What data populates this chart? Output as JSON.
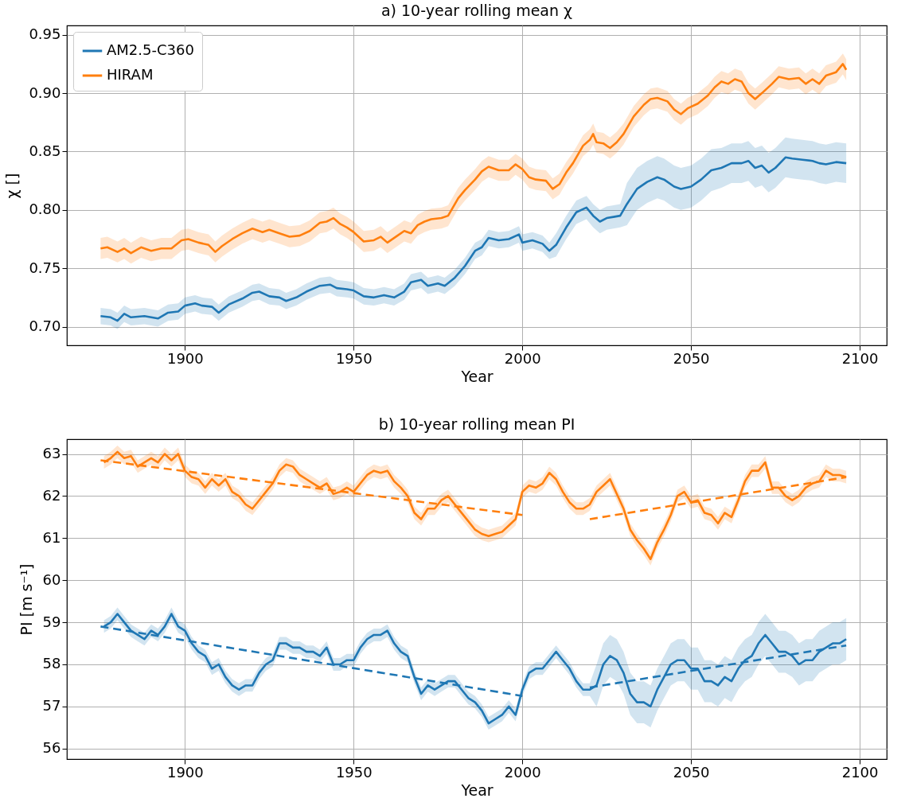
{
  "chart_data": [
    {
      "type": "line",
      "title": "a) 10-year rolling mean χ",
      "xlabel": "Year",
      "ylabel": "χ []",
      "xlim": [
        1865,
        2108
      ],
      "xticks": [
        1900,
        1950,
        2000,
        2050,
        2100
      ],
      "ylim": [
        0.684,
        0.958
      ],
      "yticks": [
        {
          "value": 0.7,
          "label": "0.70"
        },
        0.75,
        {
          "value": 0.8,
          "label": "0.80"
        },
        0.85,
        {
          "value": 0.9,
          "label": "0.90"
        },
        0.95
      ],
      "grid": true,
      "legend": "top left",
      "series": [
        {
          "name": "AM2.5-C360",
          "color": "#1f77b4",
          "x": [
            1875,
            1878,
            1880,
            1882,
            1884,
            1888,
            1892,
            1895,
            1898,
            1900,
            1903,
            1905,
            1908,
            1910,
            1913,
            1917,
            1920,
            1922,
            1925,
            1928,
            1930,
            1933,
            1936,
            1940,
            1943,
            1945,
            1948,
            1950,
            1953,
            1956,
            1959,
            1962,
            1965,
            1967,
            1970,
            1972,
            1975,
            1977,
            1980,
            1983,
            1986,
            1988,
            1990,
            1993,
            1996,
            1999,
            2000,
            2003,
            2006,
            2008,
            2010,
            2013,
            2016,
            2019,
            2021,
            2023,
            2025,
            2027,
            2029,
            2031,
            2034,
            2037,
            2040,
            2042,
            2045,
            2047,
            2050,
            2053,
            2056,
            2059,
            2062,
            2065,
            2067,
            2069,
            2071,
            2073,
            2075,
            2078,
            2080,
            2083,
            2086,
            2088,
            2090,
            2093,
            2096
          ],
          "values": [
            0.709,
            0.708,
            0.705,
            0.711,
            0.708,
            0.709,
            0.707,
            0.712,
            0.713,
            0.718,
            0.72,
            0.718,
            0.717,
            0.712,
            0.719,
            0.724,
            0.729,
            0.73,
            0.726,
            0.725,
            0.722,
            0.725,
            0.73,
            0.735,
            0.736,
            0.733,
            0.732,
            0.731,
            0.726,
            0.725,
            0.727,
            0.725,
            0.73,
            0.738,
            0.74,
            0.735,
            0.737,
            0.735,
            0.742,
            0.752,
            0.765,
            0.768,
            0.776,
            0.774,
            0.775,
            0.779,
            0.772,
            0.774,
            0.771,
            0.765,
            0.77,
            0.785,
            0.798,
            0.802,
            0.795,
            0.79,
            0.793,
            0.794,
            0.795,
            0.805,
            0.818,
            0.824,
            0.828,
            0.826,
            0.82,
            0.818,
            0.82,
            0.826,
            0.834,
            0.836,
            0.84,
            0.84,
            0.842,
            0.836,
            0.838,
            0.832,
            0.836,
            0.845,
            0.844,
            0.843,
            0.842,
            0.84,
            0.839,
            0.841,
            0.84
          ],
          "lower": [
            0.702,
            0.701,
            0.698,
            0.704,
            0.701,
            0.702,
            0.7,
            0.705,
            0.706,
            0.711,
            0.713,
            0.711,
            0.71,
            0.705,
            0.712,
            0.717,
            0.722,
            0.723,
            0.719,
            0.718,
            0.715,
            0.718,
            0.723,
            0.728,
            0.729,
            0.726,
            0.725,
            0.724,
            0.719,
            0.718,
            0.72,
            0.718,
            0.723,
            0.731,
            0.733,
            0.728,
            0.73,
            0.728,
            0.735,
            0.745,
            0.758,
            0.761,
            0.769,
            0.767,
            0.768,
            0.772,
            0.765,
            0.767,
            0.764,
            0.758,
            0.76,
            0.775,
            0.788,
            0.792,
            0.785,
            0.78,
            0.783,
            0.784,
            0.785,
            0.787,
            0.8,
            0.806,
            0.81,
            0.808,
            0.802,
            0.8,
            0.802,
            0.808,
            0.816,
            0.819,
            0.823,
            0.823,
            0.825,
            0.819,
            0.821,
            0.815,
            0.819,
            0.828,
            0.827,
            0.826,
            0.825,
            0.823,
            0.822,
            0.824,
            0.823
          ],
          "upper": [
            0.716,
            0.715,
            0.712,
            0.718,
            0.715,
            0.716,
            0.714,
            0.719,
            0.72,
            0.725,
            0.727,
            0.725,
            0.724,
            0.719,
            0.726,
            0.731,
            0.736,
            0.737,
            0.733,
            0.732,
            0.729,
            0.732,
            0.737,
            0.742,
            0.743,
            0.74,
            0.739,
            0.738,
            0.733,
            0.732,
            0.734,
            0.732,
            0.737,
            0.745,
            0.747,
            0.742,
            0.744,
            0.742,
            0.749,
            0.759,
            0.772,
            0.775,
            0.783,
            0.781,
            0.782,
            0.786,
            0.779,
            0.781,
            0.778,
            0.772,
            0.78,
            0.795,
            0.808,
            0.812,
            0.805,
            0.8,
            0.803,
            0.804,
            0.805,
            0.823,
            0.836,
            0.842,
            0.846,
            0.844,
            0.838,
            0.836,
            0.838,
            0.844,
            0.852,
            0.853,
            0.857,
            0.857,
            0.859,
            0.853,
            0.855,
            0.849,
            0.853,
            0.862,
            0.861,
            0.86,
            0.859,
            0.857,
            0.856,
            0.858,
            0.857
          ]
        },
        {
          "name": "HIRAM",
          "color": "#ff7f0e",
          "x": [
            1875,
            1877,
            1880,
            1882,
            1884,
            1887,
            1890,
            1893,
            1896,
            1899,
            1901,
            1904,
            1907,
            1909,
            1911,
            1914,
            1917,
            1920,
            1923,
            1925,
            1928,
            1931,
            1934,
            1937,
            1940,
            1942,
            1944,
            1946,
            1948,
            1950,
            1953,
            1956,
            1958,
            1960,
            1963,
            1965,
            1967,
            1969,
            1971,
            1973,
            1976,
            1978,
            1981,
            1983,
            1986,
            1988,
            1990,
            1993,
            1996,
            1998,
            2000,
            2002,
            2004,
            2007,
            2009,
            2011,
            2013,
            2015,
            2018,
            2020,
            2021,
            2022,
            2024,
            2026,
            2028,
            2030,
            2033,
            2036,
            2038,
            2040,
            2043,
            2045,
            2047,
            2049,
            2052,
            2055,
            2057,
            2059,
            2061,
            2063,
            2065,
            2067,
            2069,
            2071,
            2074,
            2076,
            2079,
            2082,
            2084,
            2086,
            2088,
            2090,
            2093,
            2095,
            2096
          ],
          "values": [
            0.767,
            0.768,
            0.764,
            0.767,
            0.763,
            0.768,
            0.765,
            0.767,
            0.767,
            0.774,
            0.775,
            0.772,
            0.77,
            0.764,
            0.769,
            0.775,
            0.78,
            0.784,
            0.781,
            0.783,
            0.78,
            0.777,
            0.778,
            0.782,
            0.789,
            0.79,
            0.793,
            0.788,
            0.785,
            0.781,
            0.773,
            0.774,
            0.777,
            0.772,
            0.778,
            0.782,
            0.78,
            0.787,
            0.79,
            0.792,
            0.793,
            0.795,
            0.81,
            0.817,
            0.826,
            0.833,
            0.837,
            0.834,
            0.834,
            0.839,
            0.835,
            0.828,
            0.826,
            0.825,
            0.818,
            0.822,
            0.832,
            0.84,
            0.855,
            0.86,
            0.865,
            0.858,
            0.857,
            0.853,
            0.858,
            0.865,
            0.88,
            0.89,
            0.895,
            0.896,
            0.893,
            0.886,
            0.882,
            0.887,
            0.891,
            0.898,
            0.905,
            0.91,
            0.908,
            0.912,
            0.91,
            0.9,
            0.895,
            0.9,
            0.908,
            0.914,
            0.912,
            0.913,
            0.908,
            0.912,
            0.908,
            0.915,
            0.918,
            0.925,
            0.92
          ],
          "lower": [
            0.758,
            0.759,
            0.755,
            0.758,
            0.754,
            0.759,
            0.756,
            0.758,
            0.758,
            0.765,
            0.766,
            0.763,
            0.761,
            0.755,
            0.76,
            0.766,
            0.771,
            0.775,
            0.772,
            0.774,
            0.771,
            0.768,
            0.769,
            0.773,
            0.78,
            0.781,
            0.784,
            0.779,
            0.776,
            0.772,
            0.764,
            0.765,
            0.768,
            0.763,
            0.769,
            0.773,
            0.771,
            0.778,
            0.781,
            0.783,
            0.784,
            0.786,
            0.801,
            0.808,
            0.817,
            0.824,
            0.828,
            0.825,
            0.825,
            0.83,
            0.826,
            0.819,
            0.817,
            0.816,
            0.809,
            0.813,
            0.823,
            0.831,
            0.846,
            0.851,
            0.856,
            0.849,
            0.848,
            0.844,
            0.849,
            0.856,
            0.871,
            0.881,
            0.886,
            0.887,
            0.884,
            0.877,
            0.873,
            0.878,
            0.882,
            0.889,
            0.896,
            0.901,
            0.899,
            0.903,
            0.901,
            0.891,
            0.886,
            0.891,
            0.899,
            0.905,
            0.903,
            0.904,
            0.899,
            0.903,
            0.899,
            0.906,
            0.909,
            0.916,
            0.911
          ],
          "upper": [
            0.776,
            0.777,
            0.773,
            0.776,
            0.772,
            0.777,
            0.774,
            0.776,
            0.776,
            0.783,
            0.784,
            0.781,
            0.779,
            0.773,
            0.778,
            0.784,
            0.789,
            0.793,
            0.79,
            0.792,
            0.789,
            0.786,
            0.787,
            0.791,
            0.798,
            0.799,
            0.802,
            0.797,
            0.794,
            0.79,
            0.782,
            0.783,
            0.786,
            0.781,
            0.787,
            0.791,
            0.789,
            0.796,
            0.799,
            0.801,
            0.802,
            0.804,
            0.819,
            0.826,
            0.835,
            0.842,
            0.846,
            0.843,
            0.843,
            0.848,
            0.844,
            0.837,
            0.835,
            0.834,
            0.827,
            0.831,
            0.841,
            0.849,
            0.864,
            0.869,
            0.874,
            0.867,
            0.866,
            0.862,
            0.867,
            0.874,
            0.889,
            0.899,
            0.904,
            0.905,
            0.902,
            0.895,
            0.891,
            0.896,
            0.9,
            0.907,
            0.914,
            0.919,
            0.917,
            0.921,
            0.919,
            0.909,
            0.904,
            0.909,
            0.917,
            0.923,
            0.921,
            0.922,
            0.917,
            0.921,
            0.917,
            0.924,
            0.927,
            0.934,
            0.929
          ]
        }
      ]
    },
    {
      "type": "line",
      "title": "b) 10-year rolling mean PI",
      "xlabel": "Year",
      "ylabel": "PI [m s⁻¹]",
      "xlim": [
        1865,
        2108
      ],
      "xticks": [
        1900,
        1950,
        2000,
        2050,
        2100
      ],
      "ylim": [
        55.75,
        63.35
      ],
      "yticks": [
        56,
        57,
        58,
        59,
        60,
        61,
        62,
        63
      ],
      "grid": true,
      "x": [
        1876,
        1878,
        1880,
        1882,
        1884,
        1886,
        1888,
        1890,
        1892,
        1894,
        1896,
        1898,
        1900,
        1902,
        1904,
        1906,
        1908,
        1910,
        1912,
        1914,
        1916,
        1918,
        1920,
        1922,
        1924,
        1926,
        1928,
        1930,
        1932,
        1934,
        1936,
        1938,
        1940,
        1942,
        1944,
        1946,
        1948,
        1950,
        1952,
        1954,
        1956,
        1958,
        1960,
        1962,
        1964,
        1966,
        1968,
        1970,
        1972,
        1974,
        1976,
        1978,
        1980,
        1982,
        1984,
        1986,
        1988,
        1990,
        1992,
        1994,
        1996,
        1998,
        2000,
        2002,
        2004,
        2006,
        2008,
        2010,
        2012,
        2014,
        2016,
        2018,
        2020,
        2022,
        2024,
        2026,
        2028,
        2030,
        2032,
        2034,
        2036,
        2038,
        2040,
        2042,
        2044,
        2046,
        2048,
        2050,
        2052,
        2054,
        2056,
        2058,
        2060,
        2062,
        2064,
        2066,
        2068,
        2070,
        2072,
        2074,
        2076,
        2078,
        2080,
        2082,
        2084,
        2086,
        2088,
        2090,
        2092,
        2094,
        2096
      ],
      "series": [
        {
          "color": "#1f77b4",
          "values": [
            58.9,
            59.0,
            59.2,
            59.0,
            58.8,
            58.7,
            58.6,
            58.8,
            58.7,
            58.9,
            59.2,
            58.9,
            58.8,
            58.5,
            58.3,
            58.2,
            57.9,
            58.0,
            57.7,
            57.5,
            57.4,
            57.5,
            57.5,
            57.8,
            58.0,
            58.1,
            58.5,
            58.5,
            58.4,
            58.4,
            58.3,
            58.3,
            58.2,
            58.4,
            58.0,
            58.0,
            58.1,
            58.1,
            58.4,
            58.6,
            58.7,
            58.7,
            58.8,
            58.5,
            58.3,
            58.2,
            57.7,
            57.3,
            57.5,
            57.4,
            57.5,
            57.6,
            57.6,
            57.4,
            57.2,
            57.1,
            56.9,
            56.6,
            56.7,
            56.8,
            57.0,
            56.8,
            57.4,
            57.8,
            57.9,
            57.9,
            58.1,
            58.3,
            58.1,
            57.9,
            57.6,
            57.4,
            57.4,
            57.5,
            58.0,
            58.2,
            58.1,
            57.8,
            57.3,
            57.1,
            57.1,
            57.0,
            57.4,
            57.7,
            58.0,
            58.1,
            58.1,
            57.9,
            57.9,
            57.6,
            57.6,
            57.5,
            57.7,
            57.6,
            57.9,
            58.1,
            58.2,
            58.5,
            58.7,
            58.5,
            58.3,
            58.3,
            58.2,
            58.0,
            58.1,
            58.1,
            58.3,
            58.4,
            58.5,
            58.5,
            58.6
          ],
          "lower": [
            58.75,
            58.85,
            59.05,
            58.85,
            58.65,
            58.55,
            58.45,
            58.65,
            58.55,
            58.75,
            59.05,
            58.75,
            58.65,
            58.35,
            58.15,
            58.05,
            57.75,
            57.85,
            57.55,
            57.35,
            57.25,
            57.35,
            57.35,
            57.65,
            57.85,
            57.95,
            58.35,
            58.35,
            58.25,
            58.25,
            58.15,
            58.15,
            58.05,
            58.25,
            57.85,
            57.85,
            57.95,
            57.95,
            58.25,
            58.45,
            58.55,
            58.55,
            58.65,
            58.35,
            58.15,
            58.05,
            57.55,
            57.15,
            57.35,
            57.25,
            57.35,
            57.45,
            57.45,
            57.25,
            57.05,
            56.95,
            56.75,
            56.45,
            56.55,
            56.65,
            56.85,
            56.65,
            57.25,
            57.65,
            57.75,
            57.75,
            57.95,
            58.15,
            57.95,
            57.75,
            57.45,
            57.25,
            57.25,
            57.0,
            57.5,
            57.7,
            57.6,
            57.3,
            56.8,
            56.6,
            56.6,
            56.5,
            56.9,
            57.2,
            57.5,
            57.6,
            57.6,
            57.4,
            57.4,
            57.1,
            57.1,
            57.0,
            57.2,
            57.1,
            57.4,
            57.6,
            57.7,
            58.0,
            58.2,
            58.0,
            57.8,
            57.8,
            57.7,
            57.5,
            57.6,
            57.6,
            57.8,
            57.9,
            58.0,
            58.0,
            58.1
          ],
          "upper": [
            59.05,
            59.15,
            59.35,
            59.15,
            58.95,
            58.85,
            58.75,
            58.95,
            58.85,
            59.05,
            59.35,
            59.05,
            58.95,
            58.65,
            58.45,
            58.35,
            58.05,
            58.15,
            57.85,
            57.65,
            57.55,
            57.65,
            57.65,
            57.95,
            58.15,
            58.25,
            58.65,
            58.65,
            58.55,
            58.55,
            58.45,
            58.45,
            58.35,
            58.55,
            58.15,
            58.15,
            58.25,
            58.25,
            58.55,
            58.75,
            58.85,
            58.85,
            58.95,
            58.65,
            58.45,
            58.35,
            57.85,
            57.45,
            57.65,
            57.55,
            57.65,
            57.75,
            57.75,
            57.55,
            57.35,
            57.25,
            57.05,
            56.75,
            56.85,
            56.95,
            57.15,
            56.95,
            57.55,
            57.95,
            58.05,
            58.05,
            58.25,
            58.45,
            58.25,
            58.05,
            57.75,
            57.55,
            57.55,
            58.0,
            58.5,
            58.7,
            58.6,
            58.3,
            57.8,
            57.6,
            57.6,
            57.5,
            57.9,
            58.2,
            58.5,
            58.6,
            58.6,
            58.4,
            58.4,
            58.1,
            58.1,
            58.0,
            58.2,
            58.1,
            58.4,
            58.6,
            58.7,
            59.0,
            59.2,
            59.0,
            58.8,
            58.8,
            58.7,
            58.5,
            58.6,
            58.6,
            58.8,
            58.9,
            59.0,
            59.0,
            59.1
          ]
        },
        {
          "color": "#ff7f0e",
          "values": [
            62.8,
            62.9,
            63.05,
            62.9,
            62.95,
            62.7,
            62.8,
            62.9,
            62.8,
            63.0,
            62.85,
            63.0,
            62.6,
            62.45,
            62.4,
            62.2,
            62.4,
            62.25,
            62.4,
            62.1,
            62.0,
            61.8,
            61.7,
            61.9,
            62.1,
            62.3,
            62.6,
            62.75,
            62.7,
            62.5,
            62.4,
            62.3,
            62.2,
            62.3,
            62.05,
            62.1,
            62.2,
            62.1,
            62.3,
            62.5,
            62.6,
            62.55,
            62.6,
            62.35,
            62.2,
            62.0,
            61.6,
            61.45,
            61.7,
            61.7,
            61.9,
            62.0,
            61.8,
            61.6,
            61.4,
            61.2,
            61.1,
            61.05,
            61.1,
            61.15,
            61.3,
            61.45,
            62.1,
            62.25,
            62.2,
            62.3,
            62.55,
            62.4,
            62.1,
            61.85,
            61.7,
            61.7,
            61.8,
            62.1,
            62.25,
            62.4,
            62.05,
            61.7,
            61.2,
            60.95,
            60.75,
            60.5,
            60.9,
            61.2,
            61.55,
            62.0,
            62.1,
            61.85,
            61.9,
            61.6,
            61.55,
            61.35,
            61.6,
            61.5,
            61.9,
            62.35,
            62.6,
            62.6,
            62.8,
            62.2,
            62.2,
            62.0,
            61.9,
            62.0,
            62.2,
            62.3,
            62.35,
            62.6,
            62.5,
            62.5,
            62.45
          ],
          "lower": [
            62.65,
            62.75,
            62.9,
            62.75,
            62.8,
            62.55,
            62.65,
            62.75,
            62.65,
            62.85,
            62.7,
            62.85,
            62.45,
            62.3,
            62.25,
            62.05,
            62.25,
            62.1,
            62.25,
            61.95,
            61.85,
            61.65,
            61.55,
            61.75,
            61.95,
            62.15,
            62.45,
            62.6,
            62.55,
            62.35,
            62.25,
            62.15,
            62.05,
            62.15,
            61.9,
            61.95,
            62.05,
            61.95,
            62.15,
            62.35,
            62.45,
            62.4,
            62.45,
            62.2,
            62.05,
            61.85,
            61.45,
            61.3,
            61.55,
            61.55,
            61.75,
            61.85,
            61.65,
            61.45,
            61.25,
            61.05,
            60.95,
            60.9,
            60.95,
            61.0,
            61.15,
            61.3,
            61.95,
            62.1,
            62.05,
            62.15,
            62.4,
            62.25,
            61.95,
            61.7,
            61.55,
            61.55,
            61.65,
            61.95,
            62.1,
            62.25,
            61.9,
            61.55,
            61.05,
            60.8,
            60.6,
            60.35,
            60.75,
            61.05,
            61.4,
            61.85,
            61.95,
            61.7,
            61.75,
            61.45,
            61.4,
            61.2,
            61.45,
            61.35,
            61.75,
            62.2,
            62.45,
            62.45,
            62.65,
            62.05,
            62.05,
            61.85,
            61.75,
            61.85,
            62.05,
            62.15,
            62.2,
            62.45,
            62.35,
            62.35,
            62.3
          ],
          "upper": [
            62.95,
            63.05,
            63.2,
            63.05,
            63.1,
            62.85,
            62.95,
            63.05,
            62.95,
            63.15,
            63.0,
            63.15,
            62.75,
            62.6,
            62.55,
            62.35,
            62.55,
            62.4,
            62.55,
            62.25,
            62.15,
            61.95,
            61.85,
            62.05,
            62.25,
            62.45,
            62.75,
            62.9,
            62.85,
            62.65,
            62.55,
            62.45,
            62.35,
            62.45,
            62.2,
            62.25,
            62.35,
            62.25,
            62.45,
            62.65,
            62.75,
            62.7,
            62.75,
            62.5,
            62.35,
            62.15,
            61.75,
            61.6,
            61.85,
            61.85,
            62.05,
            62.15,
            61.95,
            61.75,
            61.55,
            61.35,
            61.25,
            61.2,
            61.25,
            61.3,
            61.45,
            61.6,
            62.25,
            62.4,
            62.35,
            62.45,
            62.7,
            62.55,
            62.25,
            62.0,
            61.85,
            61.85,
            61.95,
            62.25,
            62.4,
            62.55,
            62.2,
            61.85,
            61.35,
            61.1,
            60.9,
            60.65,
            61.05,
            61.35,
            61.7,
            62.15,
            62.25,
            62.0,
            62.05,
            61.75,
            61.7,
            61.5,
            61.75,
            61.65,
            62.05,
            62.5,
            62.75,
            62.75,
            62.95,
            62.35,
            62.35,
            62.15,
            62.05,
            62.15,
            62.35,
            62.45,
            62.5,
            62.75,
            62.65,
            62.65,
            62.6
          ]
        },
        {
          "type": "line",
          "color": "#1f77b4",
          "line_style": "dashed",
          "x": [
            1875,
            2000
          ],
          "values": [
            58.9,
            57.25
          ]
        },
        {
          "type": "line",
          "color": "#1f77b4",
          "line_style": "dashed",
          "x": [
            2020,
            2096
          ],
          "values": [
            57.45,
            58.45
          ]
        },
        {
          "type": "line",
          "color": "#ff7f0e",
          "line_style": "dashed",
          "x": [
            1875,
            2000
          ],
          "values": [
            62.85,
            61.55
          ]
        },
        {
          "type": "line",
          "color": "#ff7f0e",
          "line_style": "dashed",
          "x": [
            2020,
            2096
          ],
          "values": [
            61.45,
            62.45
          ]
        }
      ]
    }
  ]
}
